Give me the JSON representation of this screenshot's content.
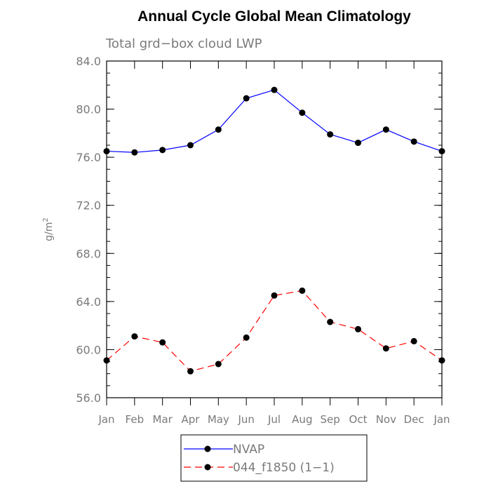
{
  "chart_data": {
    "type": "line",
    "title": "Annual Cycle Global Mean Climatology",
    "subtitle": "Total grd−box cloud LWP",
    "ylabel_base": "g/m",
    "ylabel_sup": "2",
    "ylim": [
      56.0,
      84.0
    ],
    "yticks": [
      56.0,
      60.0,
      64.0,
      68.0,
      72.0,
      76.0,
      80.0,
      84.0
    ],
    "ytick_labels": [
      "56.0",
      "60.0",
      "64.0",
      "68.0",
      "72.0",
      "76.0",
      "80.0",
      "84.0"
    ],
    "yminor_step": 1.0,
    "categories": [
      "Jan",
      "Feb",
      "Mar",
      "Apr",
      "May",
      "Jun",
      "Jul",
      "Aug",
      "Sep",
      "Oct",
      "Nov",
      "Dec",
      "Jan"
    ],
    "grid": false,
    "legend_position": "bottom",
    "series": [
      {
        "name": "NVAP",
        "color": "#0000ff",
        "dashed": false,
        "values": [
          76.5,
          76.4,
          76.6,
          77.0,
          78.3,
          80.9,
          81.6,
          79.7,
          77.9,
          77.2,
          78.3,
          77.3,
          76.5
        ]
      },
      {
        "name": "044_f1850 (1−1)",
        "color": "#ff0000",
        "dashed": true,
        "values": [
          59.1,
          61.1,
          60.6,
          58.2,
          58.8,
          61.0,
          64.5,
          64.9,
          62.3,
          61.7,
          60.1,
          60.7,
          59.1
        ]
      }
    ]
  }
}
